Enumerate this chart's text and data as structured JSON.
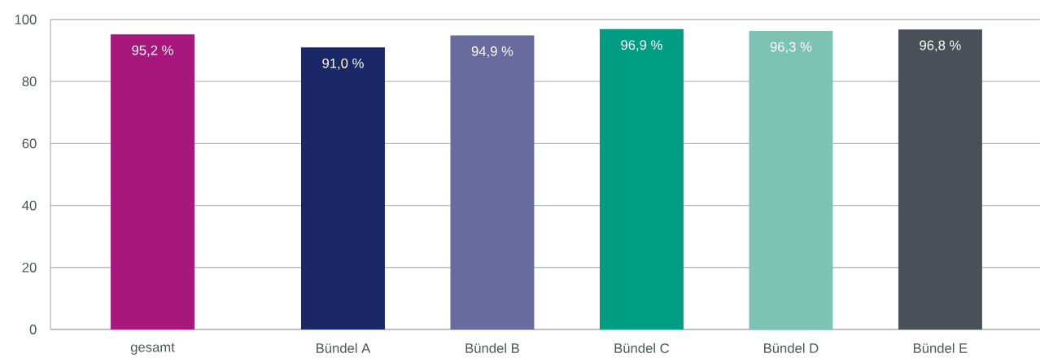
{
  "chart_data": {
    "type": "bar",
    "categories": [
      "gesamt",
      "Bündel A",
      "Bündel B",
      "Bündel C",
      "Bündel D",
      "Bündel E"
    ],
    "values": [
      95.2,
      91.0,
      94.9,
      96.9,
      96.3,
      96.8
    ],
    "colors": [
      "#a8177e",
      "#1b2868",
      "#696b9e",
      "#009c84",
      "#7cc3b4",
      "#4a5058"
    ],
    "value_labels": [
      "95,2 %",
      "91,0 %",
      "94,9 %",
      "96,9 %",
      "96,3 %",
      "96,8 %"
    ],
    "ylim": [
      0,
      100
    ],
    "yticks": [
      0,
      20,
      40,
      60,
      80,
      100
    ],
    "grid": "y"
  }
}
